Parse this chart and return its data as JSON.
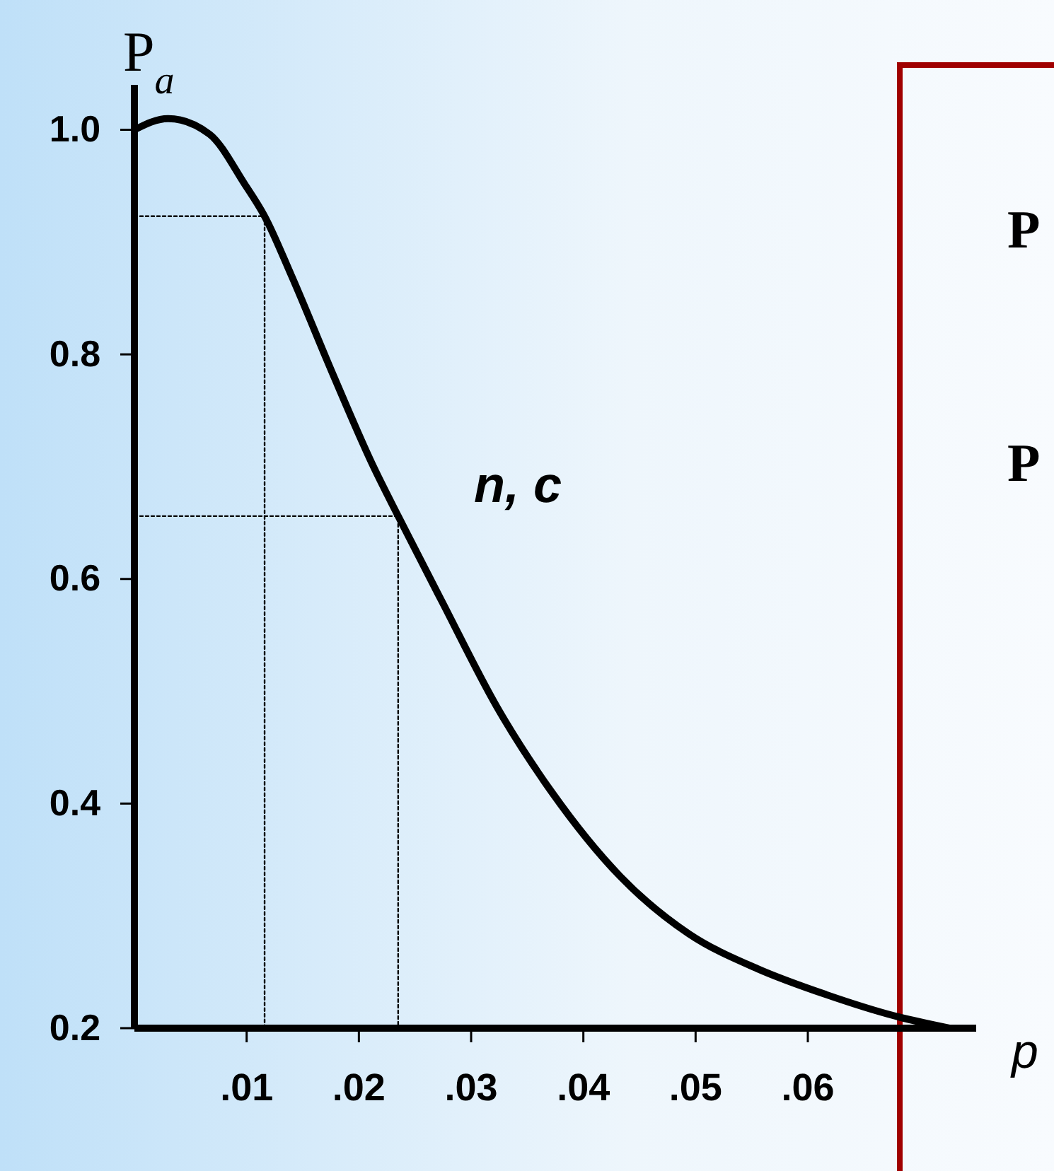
{
  "chart_data": {
    "type": "line",
    "ylabel": "P$_{a}$",
    "xlabel": "p",
    "xlim": [
      0,
      0.075
    ],
    "ylim": [
      0.2,
      1.04
    ],
    "xticks": [
      {
        "value": 0.01,
        "label": ".01"
      },
      {
        "value": 0.02,
        "label": ".02"
      },
      {
        "value": 0.03,
        "label": ".03"
      },
      {
        "value": 0.04,
        "label": ".04"
      },
      {
        "value": 0.05,
        "label": ".05"
      },
      {
        "value": 0.06,
        "label": ".06"
      }
    ],
    "yticks": [
      {
        "value": 0.2,
        "label": "0.2"
      },
      {
        "value": 0.4,
        "label": "0.4"
      },
      {
        "value": 0.6,
        "label": "0.6"
      },
      {
        "value": 0.8,
        "label": "0.8"
      },
      {
        "value": 1.0,
        "label": "1.0"
      }
    ],
    "grid": false,
    "marker": "none",
    "series": [
      {
        "color": "#000000",
        "line_style": "solid",
        "x": [
          0,
          0.003,
          0.0067,
          0.0098,
          0.0116,
          0.014,
          0.0177,
          0.0213,
          0.0235,
          0.0274,
          0.0323,
          0.0372,
          0.0433,
          0.0494,
          0.0555,
          0.0616,
          0.0677,
          0.0726
        ],
        "values": [
          1.0,
          1.01,
          0.996,
          0.952,
          0.923,
          0.87,
          0.782,
          0.7,
          0.656,
          0.58,
          0.486,
          0.41,
          0.335,
          0.284,
          0.253,
          0.23,
          0.211,
          0.2
        ]
      },
      {
        "color": "#000000",
        "line_style": "dotted",
        "x": [
          0,
          0.0116,
          0.0116
        ],
        "values": [
          0.923,
          0.923,
          0.2
        ]
      },
      {
        "color": "#000000",
        "line_style": "dotted",
        "x": [
          0,
          0.0235,
          0.0235
        ],
        "values": [
          0.656,
          0.656,
          0.2
        ]
      }
    ],
    "annotations": [
      "n, c",
      "P",
      "P"
    ]
  }
}
